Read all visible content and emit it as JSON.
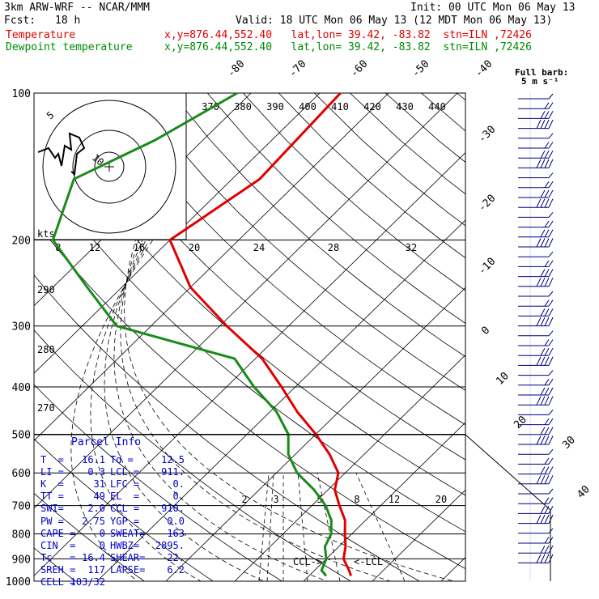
{
  "header": {
    "model": "3km ARW-WRF -- NCAR/MMM",
    "init": "Init: 00 UTC Mon 06 May 13",
    "fcst_label": "Fcst:",
    "fcst_value": "18 h",
    "valid": "Valid: 18 UTC Mon 06 May 13 (12 MDT Mon 06 May 13)",
    "temp_label": "Temperature",
    "temp_loc": "x,y=876.44,552.40   lat,lon= 39.42, -83.82  stn=ILN ,72426",
    "dew_label": "Dewpoint temperature",
    "dew_loc": "x,y=876.44,552.40   lat,lon= 39.42, -83.82  stn=ILN ,72426"
  },
  "barb_legend": {
    "line1": "Full barb:",
    "line2": "5 m s⁻¹"
  },
  "hodograph": {
    "units": "kts",
    "ring_labels": [
      "5",
      "10"
    ],
    "speed_ticks": [
      "8",
      "12",
      "16",
      "20",
      "24",
      "28",
      "32"
    ],
    "top_ticks": [
      "370",
      "380",
      "390",
      "400",
      "410",
      "420",
      "430",
      "440"
    ]
  },
  "colors": {
    "temperature": "#e00000",
    "dewpoint": "#1a8a1a",
    "parcel": "#0000cc",
    "barbs": "#000080"
  },
  "chart_data": {
    "type": "line",
    "title": "",
    "ylabel": "",
    "pressure_levels": [
      100,
      200,
      300,
      400,
      500,
      600,
      700,
      800,
      900,
      1000
    ],
    "pressure_labels": [
      "100",
      "200",
      "300",
      "400",
      "500",
      "600",
      "700",
      "800",
      "900",
      "1000"
    ],
    "isotherm_labels": [
      "-80",
      "-70",
      "-60",
      "-50",
      "-40",
      "-30",
      "-20",
      "-10",
      "0",
      "10",
      "20",
      "30",
      "40"
    ],
    "dry_adiabat_labels": [
      "290",
      "280",
      "270"
    ],
    "mixing_ratio_labels": [
      "2",
      "3",
      "5",
      "8",
      "12",
      "20"
    ],
    "series": [
      {
        "name": "Temperature",
        "points": [
          {
            "p": 100,
            "t": -57
          },
          {
            "p": 150,
            "t": -56
          },
          {
            "p": 200,
            "t": -60
          },
          {
            "p": 250,
            "t": -50
          },
          {
            "p": 300,
            "t": -39
          },
          {
            "p": 350,
            "t": -29
          },
          {
            "p": 400,
            "t": -22
          },
          {
            "p": 450,
            "t": -16
          },
          {
            "p": 500,
            "t": -10
          },
          {
            "p": 550,
            "t": -5
          },
          {
            "p": 600,
            "t": -1
          },
          {
            "p": 650,
            "t": 1
          },
          {
            "p": 700,
            "t": 4
          },
          {
            "p": 750,
            "t": 7
          },
          {
            "p": 800,
            "t": 9
          },
          {
            "p": 850,
            "t": 11
          },
          {
            "p": 900,
            "t": 12.5
          },
          {
            "p": 950,
            "t": 15
          },
          {
            "p": 975,
            "t": 16.1
          }
        ]
      },
      {
        "name": "Dewpoint temperature",
        "points": [
          {
            "p": 100,
            "t": -72
          },
          {
            "p": 125,
            "t": -77
          },
          {
            "p": 150,
            "t": -83
          },
          {
            "p": 200,
            "t": -77
          },
          {
            "p": 250,
            "t": -65
          },
          {
            "p": 300,
            "t": -55
          },
          {
            "p": 350,
            "t": -33
          },
          {
            "p": 400,
            "t": -26
          },
          {
            "p": 450,
            "t": -19
          },
          {
            "p": 500,
            "t": -14
          },
          {
            "p": 550,
            "t": -11
          },
          {
            "p": 600,
            "t": -7
          },
          {
            "p": 650,
            "t": -2
          },
          {
            "p": 700,
            "t": 2
          },
          {
            "p": 750,
            "t": 5
          },
          {
            "p": 800,
            "t": 7
          },
          {
            "p": 850,
            "t": 8
          },
          {
            "p": 900,
            "t": 10
          },
          {
            "p": 950,
            "t": 11
          },
          {
            "p": 975,
            "t": 12.5
          }
        ]
      }
    ],
    "lcl_label": "<-LCL",
    "ccl_label": "CCL->"
  },
  "parcel_info": {
    "title": "Parcel Info",
    "rows": [
      {
        "k1": "T  =",
        "v1": "16.1",
        "k2": "Td =",
        "v2": "12.5"
      },
      {
        "k1": "LI =",
        "v1": "0.3",
        "k2": "LCL =",
        "v2": "911."
      },
      {
        "k1": "K  =",
        "v1": "31",
        "k2": "LFC =",
        "v2": "0."
      },
      {
        "k1": "TT =",
        "v1": "49",
        "k2": "EL  =",
        "v2": "0."
      },
      {
        "k1": "SWI=",
        "v1": "2.0",
        "k2": "CCL =",
        "v2": "910."
      },
      {
        "k1": "PW =",
        "v1": "2.75",
        "k2": "YGP =",
        "v2": "0.0"
      },
      {
        "k1": "CAPE =",
        "v1": "0",
        "k2": "SWEAT=",
        "v2": "163"
      },
      {
        "k1": "CIN  =",
        "v1": "0",
        "k2": "HWBZ=",
        "v2": "2895."
      },
      {
        "k1": "Tc   =",
        "v1": "16.4",
        "k2": "SHEAR=",
        "v2": "22."
      },
      {
        "k1": "SREH =",
        "v1": "117",
        "k2": "LAPSE=",
        "v2": "6.2"
      },
      {
        "k1": "CELL =",
        "v1": "103/32",
        "k2": "",
        "v2": ""
      }
    ]
  }
}
